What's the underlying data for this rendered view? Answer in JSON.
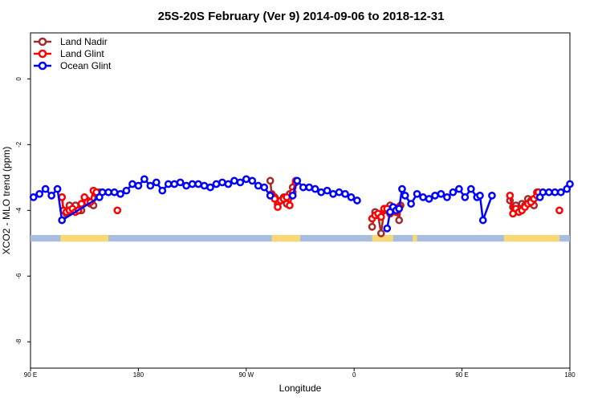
{
  "chart_data": {
    "type": "line",
    "title": "25S-20S February (Ver 9)   2014-09-06 to 2018-12-31",
    "xlabel": "Longitude",
    "ylabel": "XCO2 - MLO trend (ppm)",
    "xlim": [
      90,
      450
    ],
    "ylim": [
      -8.8,
      1.4
    ],
    "x_ticks": [
      {
        "value": 90,
        "label": "90 E"
      },
      {
        "value": 162,
        "label": "180"
      },
      {
        "value": 234,
        "label": "90 W"
      },
      {
        "value": 306,
        "label": "0"
      },
      {
        "value": 378,
        "label": "90 E"
      },
      {
        "value": 450,
        "label": "180"
      }
    ],
    "y_ticks": [
      0,
      -2,
      -4,
      -6,
      -8
    ],
    "land_band": {
      "y_top": -4.75,
      "y_bottom": -4.95,
      "ocean_color": "#a7bedf",
      "land_color": "#f9d976",
      "land_segments": [
        [
          110,
          142
        ],
        [
          251,
          270
        ],
        [
          318,
          332
        ],
        [
          345,
          348
        ],
        [
          406,
          443
        ]
      ]
    },
    "legend": {
      "position": "top-left",
      "entries": [
        {
          "label": "Land Nadir",
          "color": "#a52a2a"
        },
        {
          "label": "Land Glint",
          "color": "#ff0000"
        },
        {
          "label": "Ocean Glint",
          "color": "#0000ff"
        }
      ]
    },
    "series": [
      {
        "name": "Land Nadir",
        "color": "#a52a2a",
        "segments": [
          [
            [
              111,
              -3.6
            ],
            [
              112,
              -4.0
            ],
            [
              114,
              -4.1
            ],
            [
              116,
              -3.85
            ],
            [
              118,
              -4.0
            ],
            [
              120,
              -3.85
            ],
            [
              122,
              -4.0
            ],
            [
              124,
              -4.0
            ],
            [
              126,
              -3.75
            ],
            [
              128,
              -3.7
            ],
            [
              130,
              -3.8
            ],
            [
              132,
              -3.85
            ],
            [
              134,
              -3.5
            ],
            [
              136,
              -3.45
            ]
          ],
          [
            [
              250,
              -3.1
            ],
            [
              251,
              -3.5
            ],
            [
              253,
              -3.6
            ],
            [
              255,
              -3.8
            ],
            [
              257,
              -3.7
            ],
            [
              259,
              -3.6
            ],
            [
              261,
              -3.8
            ],
            [
              263,
              -3.5
            ],
            [
              265,
              -3.3
            ],
            [
              267,
              -3.1
            ]
          ],
          [
            [
              318,
              -4.5
            ],
            [
              320,
              -4.05
            ],
            [
              322,
              -4.15
            ],
            [
              324,
              -4.7
            ],
            [
              326,
              -4.0
            ],
            [
              328,
              -3.95
            ],
            [
              330,
              -3.85
            ],
            [
              332,
              -3.9
            ],
            [
              334,
              -4.0
            ],
            [
              336,
              -4.3
            ],
            [
              337,
              -3.85
            ]
          ],
          [
            [
              410,
              -3.7
            ],
            [
              412,
              -3.9
            ],
            [
              414,
              -3.85
            ],
            [
              416,
              -3.95
            ],
            [
              418,
              -3.8
            ],
            [
              420,
              -3.85
            ],
            [
              422,
              -3.65
            ],
            [
              424,
              -3.7
            ],
            [
              426,
              -3.85
            ],
            [
              428,
              -3.45
            ],
            [
              429,
              -3.5
            ]
          ]
        ]
      },
      {
        "name": "Land Glint",
        "color": "#ff0000",
        "segments": [
          [
            [
              111,
              -3.6
            ],
            [
              112,
              -4.0
            ],
            [
              114,
              -4.05
            ],
            [
              116,
              -4.0
            ],
            [
              118,
              -3.95
            ],
            [
              120,
              -4.05
            ],
            [
              122,
              -4.0
            ],
            [
              124,
              -3.8
            ],
            [
              126,
              -3.6
            ],
            [
              128,
              -3.75
            ],
            [
              130,
              -3.75
            ],
            [
              132,
              -3.4
            ],
            [
              134,
              -3.45
            ]
          ],
          [
            [
              148,
              -4.0
            ]
          ],
          [
            [
              251,
              -3.55
            ],
            [
              253,
              -3.65
            ],
            [
              255,
              -3.9
            ],
            [
              257,
              -3.7
            ],
            [
              259,
              -3.65
            ],
            [
              261,
              -3.6
            ],
            [
              263,
              -3.85
            ],
            [
              265,
              -3.45
            ],
            [
              267,
              -3.15
            ]
          ],
          [
            [
              318,
              -4.25
            ],
            [
              320,
              -4.15
            ],
            [
              322,
              -4.1
            ],
            [
              324,
              -4.2
            ],
            [
              326,
              -3.95
            ],
            [
              328,
              -3.95
            ],
            [
              330,
              -4.1
            ],
            [
              332,
              -3.9
            ],
            [
              334,
              -4.05
            ],
            [
              336,
              -3.9
            ]
          ],
          [
            [
              410,
              -3.55
            ],
            [
              412,
              -4.1
            ],
            [
              414,
              -3.95
            ],
            [
              416,
              -4.05
            ],
            [
              418,
              -4.0
            ],
            [
              420,
              -3.9
            ],
            [
              422,
              -3.8
            ],
            [
              424,
              -3.75
            ],
            [
              426,
              -3.65
            ],
            [
              428,
              -3.55
            ],
            [
              429,
              -3.45
            ]
          ],
          [
            [
              443,
              -4.0
            ]
          ]
        ]
      },
      {
        "name": "Ocean Glint",
        "color": "#0000ff",
        "segments": [
          [
            [
              92,
              -3.6
            ],
            [
              96,
              -3.5
            ],
            [
              100,
              -3.35
            ],
            [
              104,
              -3.55
            ],
            [
              108,
              -3.35
            ],
            [
              111,
              -4.3
            ],
            [
              136,
              -3.6
            ],
            [
              138,
              -3.45
            ],
            [
              142,
              -3.45
            ],
            [
              146,
              -3.45
            ],
            [
              150,
              -3.5
            ],
            [
              154,
              -3.4
            ],
            [
              158,
              -3.2
            ],
            [
              162,
              -3.25
            ],
            [
              166,
              -3.05
            ],
            [
              170,
              -3.25
            ],
            [
              174,
              -3.15
            ],
            [
              178,
              -3.4
            ],
            [
              182,
              -3.2
            ],
            [
              186,
              -3.2
            ],
            [
              190,
              -3.15
            ],
            [
              194,
              -3.25
            ],
            [
              198,
              -3.2
            ],
            [
              202,
              -3.2
            ],
            [
              206,
              -3.25
            ],
            [
              210,
              -3.3
            ],
            [
              214,
              -3.2
            ],
            [
              218,
              -3.15
            ],
            [
              222,
              -3.2
            ],
            [
              226,
              -3.1
            ],
            [
              230,
              -3.15
            ],
            [
              234,
              -3.05
            ],
            [
              238,
              -3.1
            ],
            [
              242,
              -3.25
            ],
            [
              246,
              -3.3
            ],
            [
              250,
              -3.55
            ]
          ],
          [
            [
              265,
              -3.55
            ],
            [
              268,
              -3.1
            ],
            [
              272,
              -3.3
            ],
            [
              276,
              -3.3
            ],
            [
              280,
              -3.35
            ],
            [
              284,
              -3.45
            ],
            [
              288,
              -3.4
            ],
            [
              292,
              -3.5
            ],
            [
              296,
              -3.45
            ],
            [
              300,
              -3.5
            ],
            [
              304,
              -3.6
            ],
            [
              308,
              -3.7
            ]
          ],
          [
            [
              328,
              -4.55
            ],
            [
              330,
              -4.05
            ],
            [
              332,
              -3.9
            ],
            [
              334,
              -4.0
            ],
            [
              336,
              -3.95
            ],
            [
              338,
              -3.35
            ],
            [
              340,
              -3.55
            ],
            [
              344,
              -3.8
            ],
            [
              348,
              -3.5
            ],
            [
              352,
              -3.6
            ],
            [
              356,
              -3.65
            ],
            [
              360,
              -3.55
            ],
            [
              364,
              -3.5
            ],
            [
              368,
              -3.6
            ],
            [
              372,
              -3.45
            ],
            [
              376,
              -3.35
            ],
            [
              380,
              -3.6
            ],
            [
              384,
              -3.35
            ],
            [
              388,
              -3.6
            ],
            [
              390,
              -3.55
            ],
            [
              392,
              -4.3
            ],
            [
              398,
              -3.55
            ]
          ],
          [
            [
              430,
              -3.6
            ],
            [
              432,
              -3.45
            ],
            [
              436,
              -3.45
            ],
            [
              440,
              -3.45
            ],
            [
              444,
              -3.45
            ],
            [
              448,
              -3.35
            ],
            [
              450,
              -3.2
            ]
          ]
        ]
      }
    ]
  }
}
